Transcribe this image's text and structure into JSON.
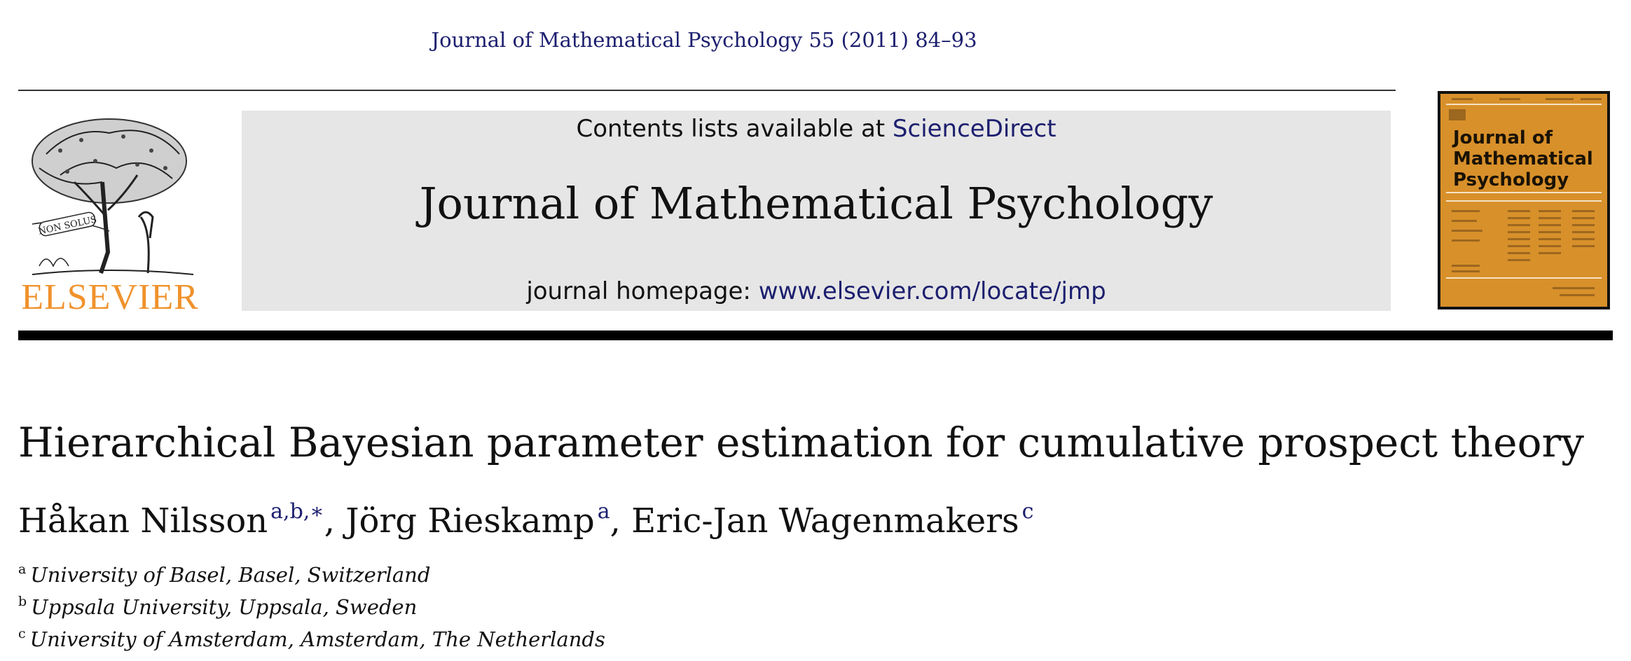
{
  "header": {
    "citation": "Journal of Mathematical Psychology 55 (2011) 84–93",
    "publisher_logo_text": "ELSEVIER",
    "publisher_logo_motto": "NON SOLUS",
    "contents_prefix": "Contents lists available at ",
    "contents_link": "ScienceDirect",
    "journal_title": "Journal of Mathematical Psychology",
    "homepage_prefix": "journal homepage: ",
    "homepage_link": "www.elsevier.com/locate/jmp",
    "cover_title": "Journal of Mathematical Psychology",
    "colors": {
      "link": "#1c1f6e",
      "elsevier_orange": "#f0922c",
      "cover": "#d8902a",
      "banner": "#e6e6e6"
    }
  },
  "article": {
    "title": "Hierarchical Bayesian parameter estimation for cumulative prospect theory",
    "authors": [
      {
        "name": "Håkan Nilsson",
        "marks": "a,b,∗"
      },
      {
        "name": "Jörg Rieskamp",
        "marks": "a"
      },
      {
        "name": "Eric-Jan Wagenmakers",
        "marks": "c"
      }
    ],
    "author_separator": ", ",
    "affiliations": [
      {
        "mark": "a",
        "text": "University of Basel, Basel, Switzerland"
      },
      {
        "mark": "b",
        "text": "Uppsala University, Uppsala, Sweden"
      },
      {
        "mark": "c",
        "text": "University of Amsterdam, Amsterdam, The Netherlands"
      }
    ]
  }
}
